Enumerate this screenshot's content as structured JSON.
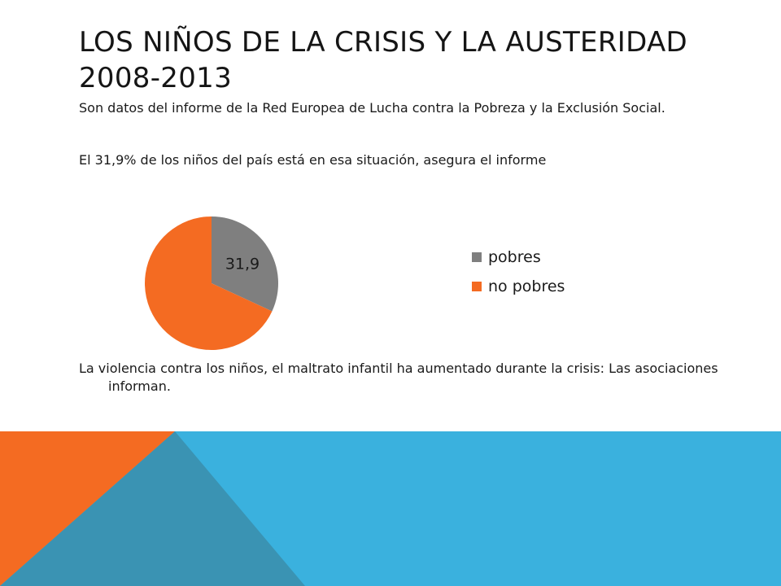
{
  "slide": {
    "title_line1": "LOS NIÑOS DE LA CRISIS Y LA AUSTERIDAD",
    "title_line2": "2008-2013",
    "paragraph1": "Son datos del informe de la Red Europea de Lucha contra la Pobreza y la Exclusión Social.",
    "paragraph2": "El 31,9% de los niños del país está en esa situación, asegura el informe",
    "paragraph3": "La violencia contra los niños, el maltrato infantil ha aumentado durante la crisis: Las asociaciones informan."
  },
  "chart_data": {
    "type": "pie",
    "categories": [
      "pobres",
      "no pobres"
    ],
    "values": [
      31.9,
      68.1
    ],
    "data_labels": [
      "31,9",
      ""
    ],
    "colors": [
      "#7f7f7f",
      "#f46b22"
    ],
    "legend_position": "right"
  },
  "theme": {
    "footer_blue": "#3ab1de",
    "footer_orange": "#f46b22",
    "footer_teal": "#3a93b3"
  }
}
